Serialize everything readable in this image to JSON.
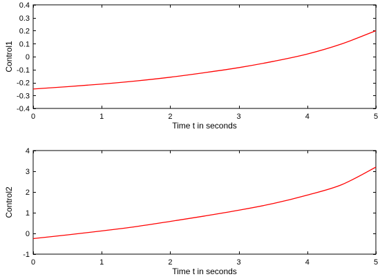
{
  "chart_data": [
    {
      "type": "line",
      "xlabel": "Time t in seconds",
      "ylabel": "Control1",
      "xlim": [
        0,
        5
      ],
      "ylim": [
        -0.4,
        0.4
      ],
      "xticks": [
        0,
        1,
        2,
        3,
        4,
        5
      ],
      "yticks": [
        -0.4,
        -0.3,
        -0.2,
        -0.1,
        0,
        0.1,
        0.2,
        0.3,
        0.4
      ],
      "xtick_labels": [
        "0",
        "1",
        "2",
        "3",
        "4",
        "5"
      ],
      "ytick_labels": [
        "-0.4",
        "-0.3",
        "-0.2",
        "-0.1",
        "0",
        "0.1",
        "0.2",
        "0.3",
        "0.4"
      ],
      "grid": false,
      "series": [
        {
          "color": "#ff0000",
          "x": [
            0,
            0.5,
            1,
            1.5,
            2,
            2.5,
            3,
            3.5,
            4,
            4.5,
            5
          ],
          "y": [
            -0.25,
            -0.232,
            -0.212,
            -0.188,
            -0.159,
            -0.124,
            -0.085,
            -0.037,
            0.02,
            0.098,
            0.2
          ]
        }
      ]
    },
    {
      "type": "line",
      "xlabel": "Time t in seconds",
      "ylabel": "Control2",
      "xlim": [
        0,
        5
      ],
      "ylim": [
        -1,
        4
      ],
      "xticks": [
        0,
        1,
        2,
        3,
        4,
        5
      ],
      "yticks": [
        -1,
        0,
        1,
        2,
        3,
        4
      ],
      "xtick_labels": [
        "0",
        "1",
        "2",
        "3",
        "4",
        "5"
      ],
      "ytick_labels": [
        "-1",
        "0",
        "1",
        "2",
        "3",
        "4"
      ],
      "grid": false,
      "series": [
        {
          "color": "#ff0000",
          "x": [
            0,
            0.5,
            1,
            1.5,
            2,
            2.5,
            3,
            3.5,
            4,
            4.5,
            5
          ],
          "y": [
            -0.25,
            -0.07,
            0.12,
            0.33,
            0.58,
            0.84,
            1.12,
            1.44,
            1.85,
            2.35,
            3.2
          ]
        }
      ]
    }
  ]
}
